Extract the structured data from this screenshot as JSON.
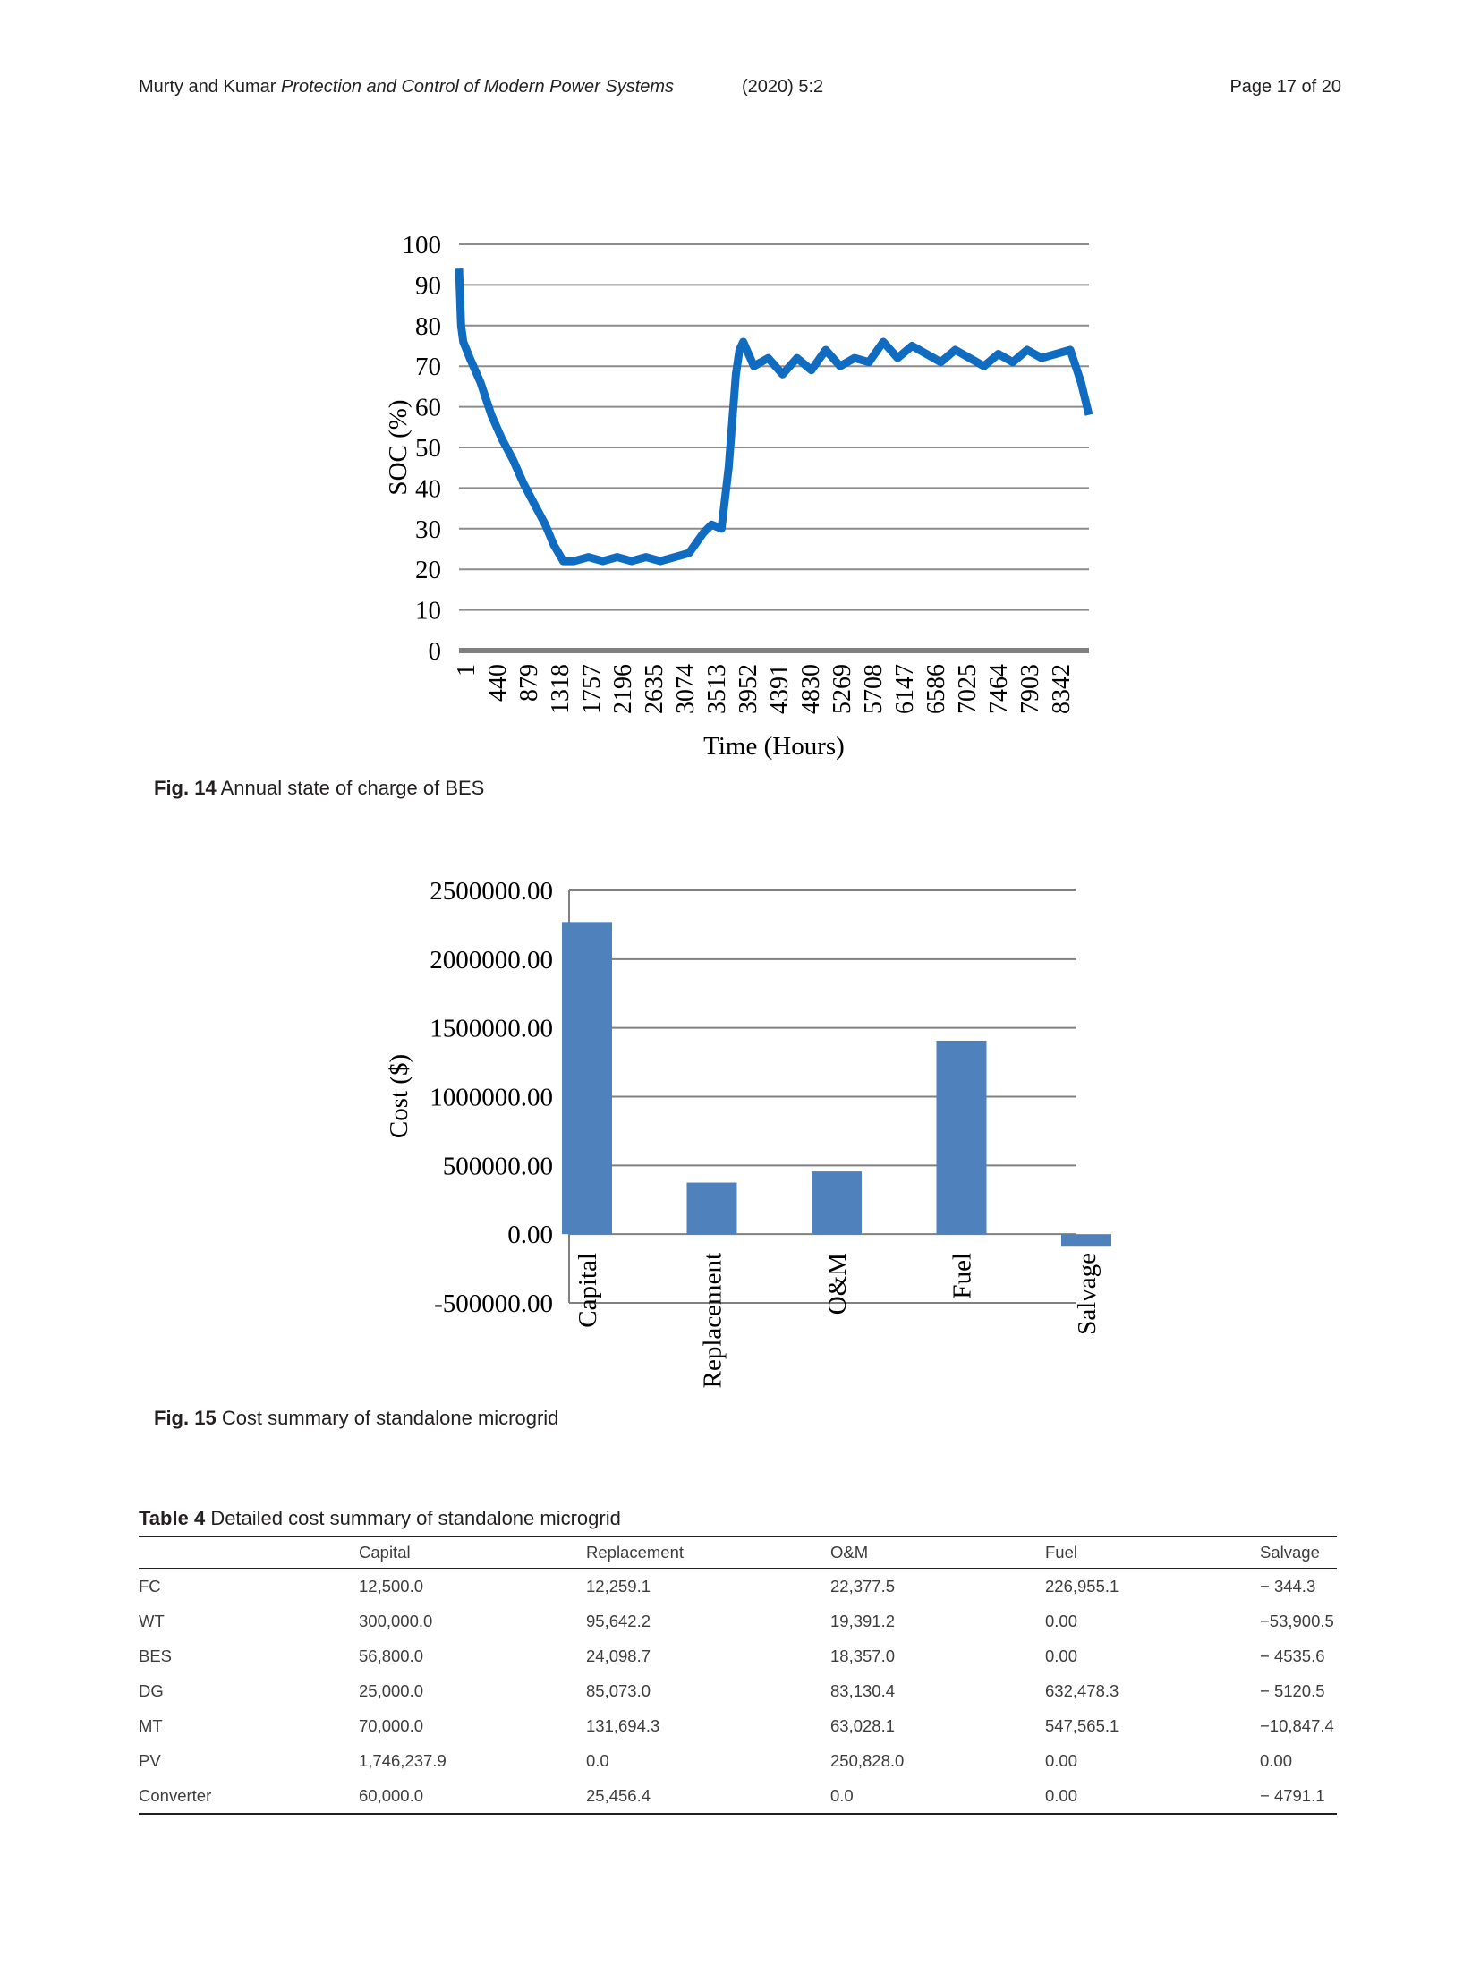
{
  "header": {
    "authors": "Murty and Kumar",
    "journal": "Protection and Control of Modern Power Systems",
    "volume": "(2020) 5:2",
    "page": "Page 17 of 20"
  },
  "fig14": {
    "label": "Fig. 14",
    "caption": "Annual state of charge of BES"
  },
  "fig15": {
    "label": "Fig. 15",
    "caption": "Cost summary of standalone microgrid"
  },
  "table4": {
    "label": "Table 4",
    "caption": "Detailed cost summary of standalone microgrid",
    "columns": [
      "",
      "Capital",
      "Replacement",
      "O&M",
      "Fuel",
      "Salvage"
    ],
    "rows": [
      [
        "FC",
        "12,500.0",
        "12,259.1",
        "22,377.5",
        "226,955.1",
        "− 344.3"
      ],
      [
        "WT",
        "300,000.0",
        "95,642.2",
        "19,391.2",
        "0.00",
        "−53,900.5"
      ],
      [
        "BES",
        "56,800.0",
        "24,098.7",
        "18,357.0",
        "0.00",
        "− 4535.6"
      ],
      [
        "DG",
        "25,000.0",
        "85,073.0",
        "83,130.4",
        "632,478.3",
        "− 5120.5"
      ],
      [
        "MT",
        "70,000.0",
        "131,694.3",
        "63,028.1",
        "547,565.1",
        "−10,847.4"
      ],
      [
        "PV",
        "1,746,237.9",
        "0.0",
        "250,828.0",
        "0.00",
        "0.00"
      ],
      [
        "Converter",
        "60,000.0",
        "25,456.4",
        "0.0",
        "0.00",
        "− 4791.1"
      ]
    ]
  },
  "chart_data": [
    {
      "type": "line",
      "title": "",
      "xlabel": "Time (Hours)",
      "ylabel": "SOC (%)",
      "ylim": [
        0,
        100
      ],
      "yticks": [
        "0",
        "10",
        "20",
        "30",
        "40",
        "50",
        "60",
        "70",
        "80",
        "90",
        "100"
      ],
      "xticks": [
        "1",
        "440",
        "879",
        "1318",
        "1757",
        "2196",
        "2635",
        "3074",
        "3513",
        "3952",
        "4391",
        "4830",
        "5269",
        "5708",
        "6147",
        "6586",
        "7025",
        "7464",
        "7903",
        "8342"
      ],
      "xlim": [
        1,
        8760
      ],
      "grid": true,
      "color": "#0f6cc0",
      "series": [
        {
          "x": [
            1,
            30,
            60,
            150,
            300,
            450,
            600,
            750,
            900,
            1050,
            1200,
            1318,
            1450,
            1600,
            1800,
            2000,
            2200,
            2400,
            2600,
            2800,
            3000,
            3200,
            3400,
            3513,
            3650,
            3750,
            3850,
            3900,
            3952,
            4100,
            4300,
            4500,
            4700,
            4900,
            5100,
            5300,
            5500,
            5700,
            5900,
            6100,
            6300,
            6500,
            6700,
            6900,
            7100,
            7300,
            7500,
            7700,
            7900,
            8100,
            8300,
            8500,
            8650,
            8760
          ],
          "y": [
            94,
            80,
            76,
            72,
            66,
            58,
            52,
            47,
            41,
            36,
            31,
            26,
            22,
            22,
            23,
            22,
            23,
            22,
            23,
            22,
            23,
            24,
            29,
            31,
            30,
            45,
            68,
            74,
            76,
            70,
            72,
            68,
            72,
            69,
            74,
            70,
            72,
            71,
            76,
            72,
            75,
            73,
            71,
            74,
            72,
            70,
            73,
            71,
            74,
            72,
            73,
            74,
            66,
            58
          ]
        }
      ]
    },
    {
      "type": "bar",
      "title": "",
      "xlabel": "",
      "ylabel": "Cost ($)",
      "categories": [
        "Capital",
        "Replacement",
        "O&M",
        "Fuel",
        "Salvage"
      ],
      "values": [
        2270000,
        375000,
        456000,
        1407000,
        -85000
      ],
      "ylim": [
        -500000,
        2500000
      ],
      "yticks": [
        "-500000.00",
        "0.00",
        "500000.00",
        "1000000.00",
        "1500000.00",
        "2000000.00",
        "2500000.00"
      ],
      "grid": true,
      "color": "#4f81bd"
    }
  ]
}
